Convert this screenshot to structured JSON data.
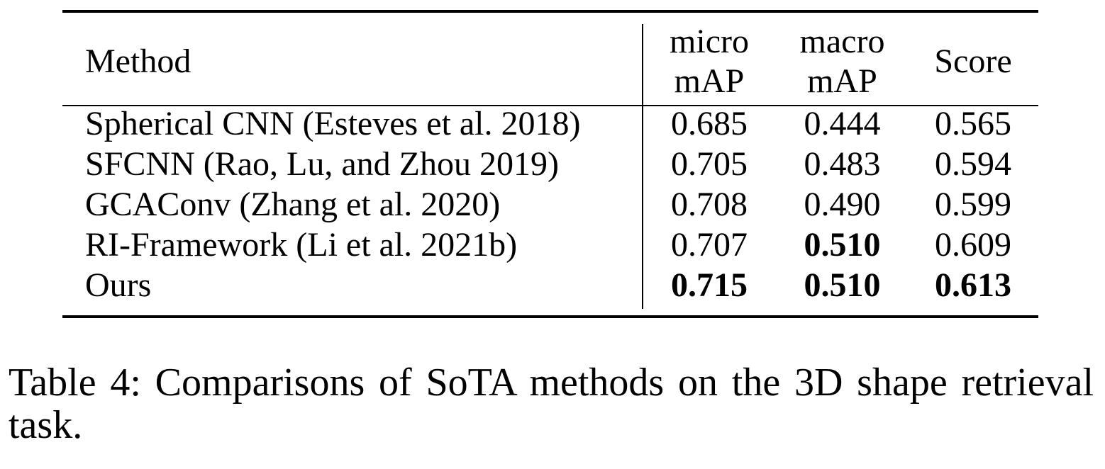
{
  "table": {
    "header": {
      "method": "Method",
      "col1_line1": "micro",
      "col1_line2": "mAP",
      "col2_line1": "macro",
      "col2_line2": "mAP",
      "col3": "Score"
    },
    "rows": [
      {
        "method": "Spherical CNN (Esteves et al. 2018)",
        "micro": "0.685",
        "macro": "0.444",
        "score": "0.565"
      },
      {
        "method": "SFCNN (Rao, Lu, and Zhou 2019)",
        "micro": "0.705",
        "macro": "0.483",
        "score": "0.594"
      },
      {
        "method": "GCAConv (Zhang et al. 2020)",
        "micro": "0.708",
        "macro": "0.490",
        "score": "0.599"
      },
      {
        "method": "RI-Framework (Li et al. 2021b)",
        "micro": "0.707",
        "macro": "0.510",
        "score": "0.609"
      },
      {
        "method": "Ours",
        "micro": "0.715",
        "macro": "0.510",
        "score": "0.613"
      }
    ],
    "bold_cells": [
      "rows.3.macro",
      "rows.4.micro",
      "rows.4.macro",
      "rows.4.score"
    ]
  },
  "caption": "Table 4: Comparisons of SoTA methods on the 3D shape retrieval task."
}
